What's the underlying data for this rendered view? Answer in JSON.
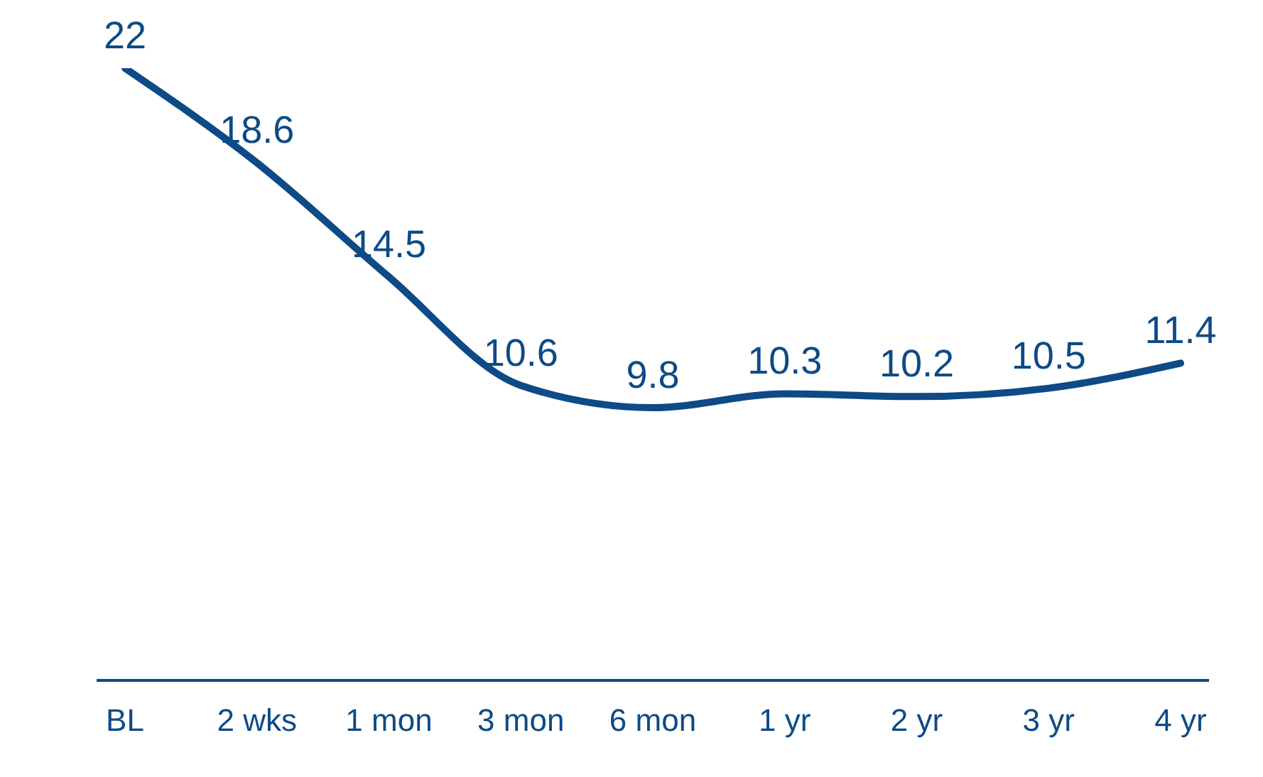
{
  "chart_data": {
    "type": "line",
    "categories": [
      "BL",
      "2 wks",
      "1 mon",
      "3 mon",
      "6 mon",
      "1 yr",
      "2 yr",
      "3 yr",
      "4 yr"
    ],
    "series": [
      {
        "color": "#0d4a86",
        "values": [
          22,
          18.6,
          14.5,
          10.6,
          9.8,
          10.3,
          10.2,
          10.5,
          11.4
        ]
      }
    ],
    "tick_labels": "x",
    "data_labels": true,
    "marker": "none",
    "line_style": "solid"
  }
}
